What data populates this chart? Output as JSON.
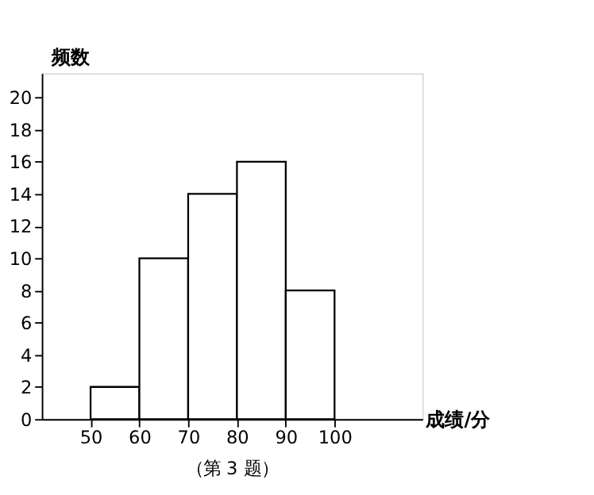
{
  "chart_data": {
    "type": "histogram",
    "xlabel": "成绩/分",
    "ylabel": "频数",
    "bins": [
      50,
      60,
      70,
      80,
      90,
      100
    ],
    "values": [
      2,
      10,
      14,
      16,
      8
    ],
    "color": "#ffffff",
    "xlim": [
      40,
      118
    ],
    "xticks": [
      50,
      60,
      70,
      80,
      90,
      100
    ],
    "ylim": [
      0,
      21.5
    ],
    "yticks": [
      0,
      2,
      4,
      6,
      8,
      10,
      12,
      14,
      16,
      18,
      20
    ],
    "grid": false,
    "annotations": [
      "（第 3 题）"
    ]
  }
}
